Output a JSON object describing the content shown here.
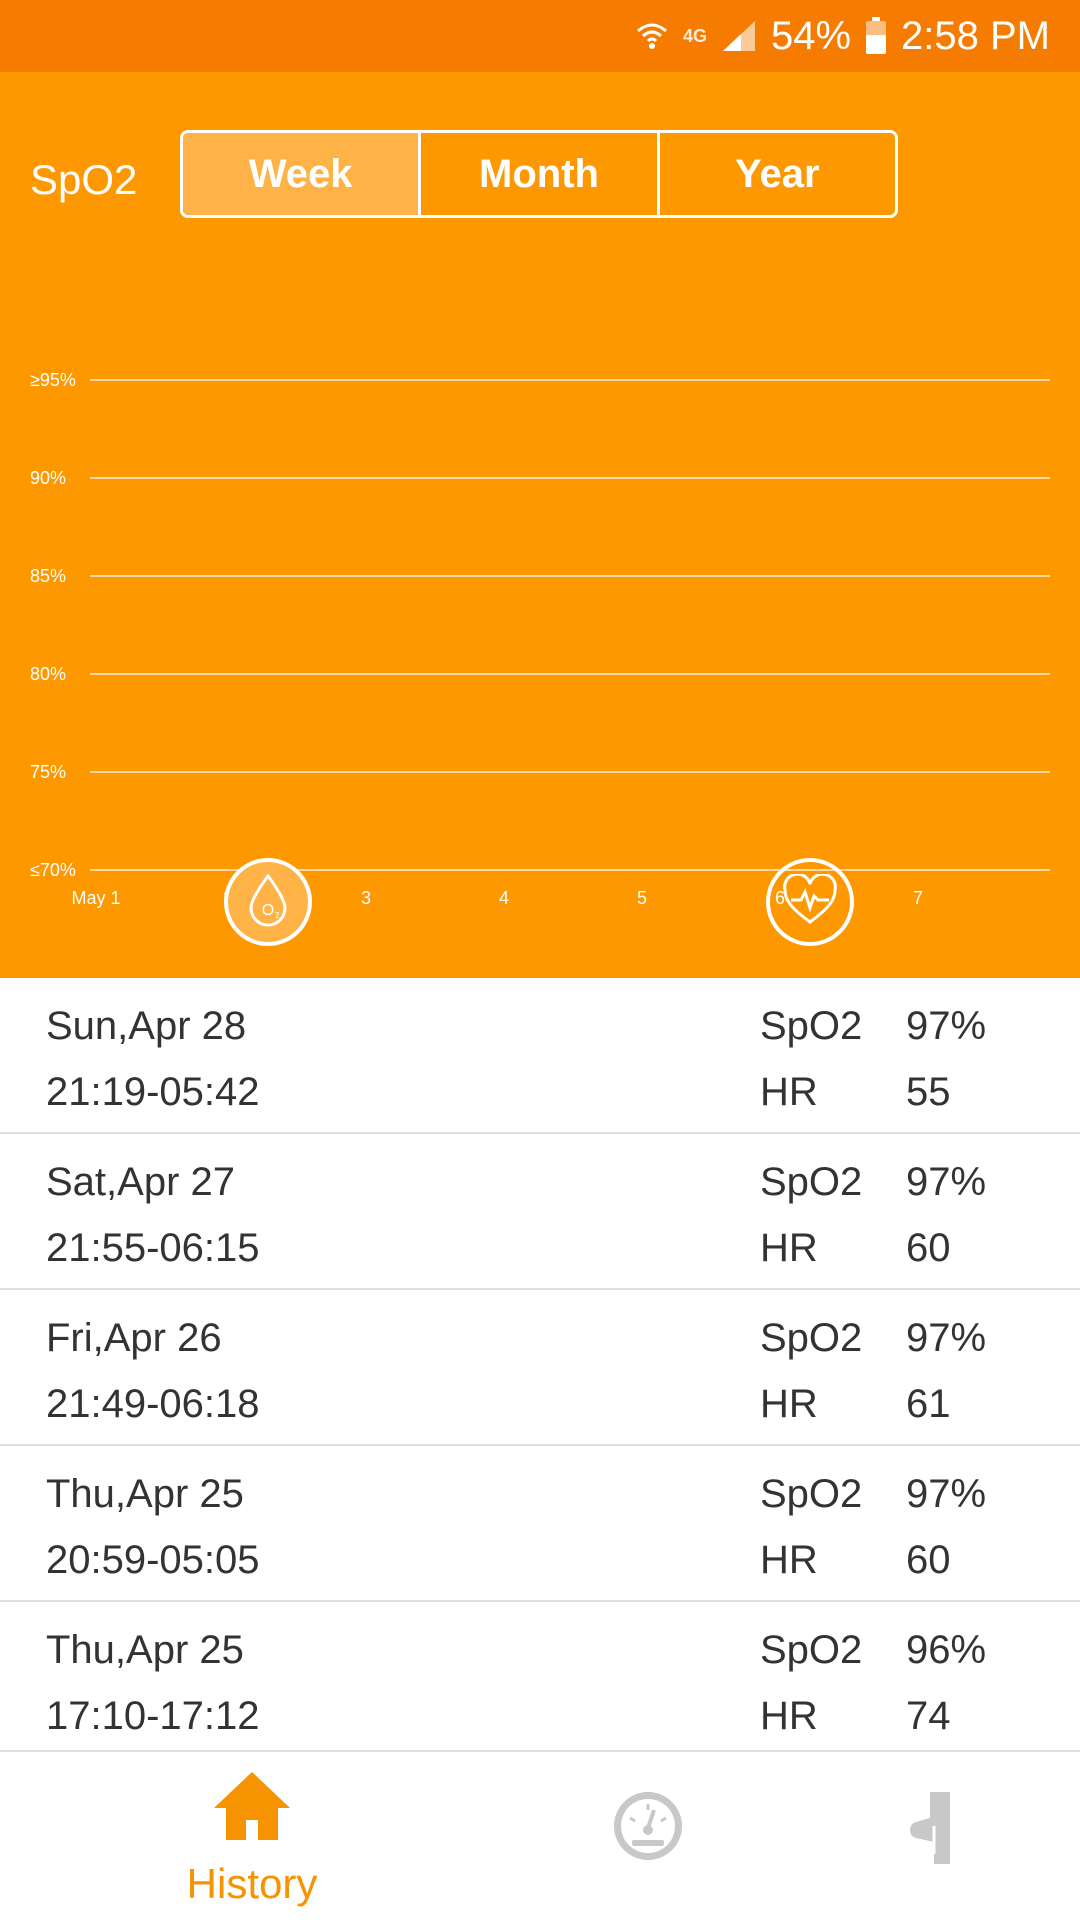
{
  "status_bar": {
    "network": "4G",
    "battery": "54%",
    "time": "2:58 PM"
  },
  "header": {
    "title": "SpO2",
    "tabs": [
      {
        "label": "Week",
        "active": true
      },
      {
        "label": "Month",
        "active": false
      },
      {
        "label": "Year",
        "active": false
      }
    ]
  },
  "chart_data": {
    "type": "line",
    "y_ticks": [
      "≥95%",
      "90%",
      "85%",
      "80%",
      "75%",
      "≤70%"
    ],
    "x_ticks": [
      "May 1",
      "2",
      "3",
      "4",
      "5",
      "6",
      "7"
    ],
    "series": [],
    "grid": true
  },
  "toggles": {
    "o2": {
      "icon": "oxygen-drop-icon",
      "active": true
    },
    "hr": {
      "icon": "heart-pulse-icon",
      "active": false
    }
  },
  "records": [
    {
      "date": "Sun,Apr 28",
      "time": "21:19-05:42",
      "spo2_label": "SpO2",
      "spo2": "97%",
      "hr_label": "HR",
      "hr": "55"
    },
    {
      "date": "Sat,Apr 27",
      "time": "21:55-06:15",
      "spo2_label": "SpO2",
      "spo2": "97%",
      "hr_label": "HR",
      "hr": "60"
    },
    {
      "date": "Fri,Apr 26",
      "time": "21:49-06:18",
      "spo2_label": "SpO2",
      "spo2": "97%",
      "hr_label": "HR",
      "hr": "61"
    },
    {
      "date": "Thu,Apr 25",
      "time": "20:59-05:05",
      "spo2_label": "SpO2",
      "spo2": "97%",
      "hr_label": "HR",
      "hr": "60"
    },
    {
      "date": "Thu,Apr 25",
      "time": "17:10-17:12",
      "spo2_label": "SpO2",
      "spo2": "96%",
      "hr_label": "HR",
      "hr": "74"
    }
  ],
  "bottom_nav": {
    "history_label": "History",
    "accent": "#f59300",
    "inactive": "#c8c8c8"
  },
  "colors": {
    "header_bg": "#fe9800",
    "status_bg": "#f57c00",
    "tab_active_bg": "#ffb347"
  }
}
